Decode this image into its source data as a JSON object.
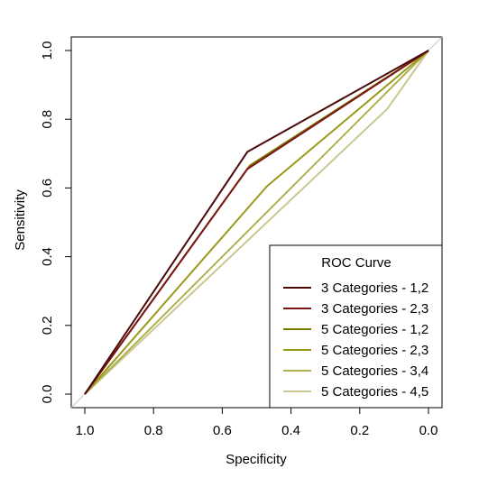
{
  "chart_data": {
    "type": "line",
    "title": "",
    "xlabel": "Specificity",
    "ylabel": "Sensitivity",
    "xlim": [
      1.0,
      0.0
    ],
    "ylim": [
      0.0,
      1.0
    ],
    "x_reversed": true,
    "x_ticks": [
      "1.0",
      "0.8",
      "0.6",
      "0.4",
      "0.2",
      "0.0"
    ],
    "y_ticks": [
      "0.0",
      "0.2",
      "0.4",
      "0.6",
      "0.8",
      "1.0"
    ],
    "grid": false,
    "diagonal_reference": true,
    "legend": {
      "title": "ROC Curve",
      "position": "bottom-right"
    },
    "series": [
      {
        "name": "3 Categories - 1,2",
        "color": "#4a0a0a",
        "points": [
          [
            1.0,
            0.0
          ],
          [
            0.527,
            0.705
          ],
          [
            0.0,
            1.0
          ]
        ]
      },
      {
        "name": "3 Categories - 2,3",
        "color": "#7a1515",
        "points": [
          [
            1.0,
            0.0
          ],
          [
            0.527,
            0.655
          ],
          [
            0.0,
            1.0
          ]
        ]
      },
      {
        "name": "5 Categories - 1,2",
        "color": "#7a7a00",
        "points": [
          [
            1.0,
            0.0
          ],
          [
            0.52,
            0.665
          ],
          [
            0.0,
            1.0
          ]
        ]
      },
      {
        "name": "5 Categories - 2,3",
        "color": "#9a9a1a",
        "points": [
          [
            1.0,
            0.0
          ],
          [
            0.47,
            0.605
          ],
          [
            0.0,
            1.0
          ]
        ]
      },
      {
        "name": "5 Categories - 3,4",
        "color": "#b0b050",
        "points": [
          [
            1.0,
            0.0
          ],
          [
            0.55,
            0.45
          ],
          [
            0.0,
            1.0
          ]
        ]
      },
      {
        "name": "5 Categories - 4,5",
        "color": "#c8c890",
        "points": [
          [
            1.0,
            0.0
          ],
          [
            0.12,
            0.83
          ],
          [
            0.0,
            1.0
          ]
        ]
      }
    ]
  }
}
